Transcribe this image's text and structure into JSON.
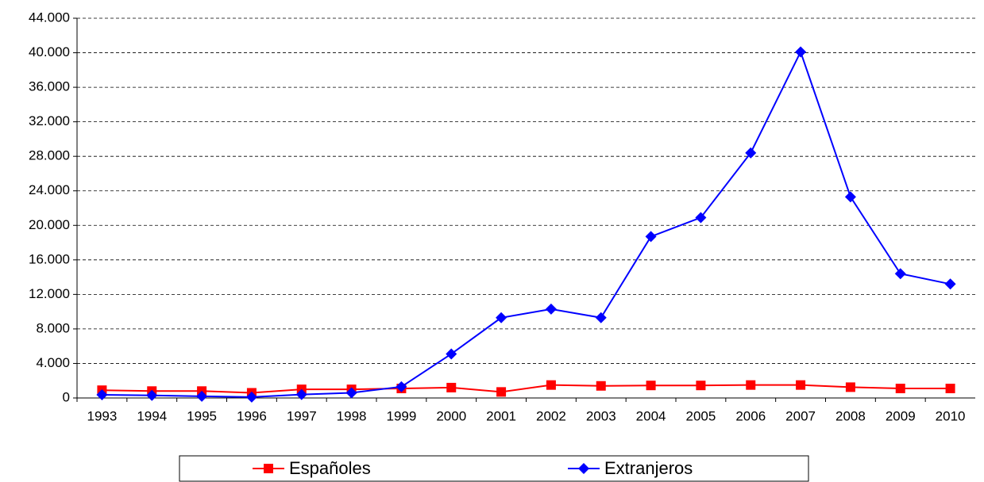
{
  "chart_data": {
    "type": "line",
    "categories": [
      "1993",
      "1994",
      "1995",
      "1996",
      "1997",
      "1998",
      "1999",
      "2000",
      "2001",
      "2002",
      "2003",
      "2004",
      "2005",
      "2006",
      "2007",
      "2008",
      "2009",
      "2010"
    ],
    "series": [
      {
        "name": "Españoles",
        "color": "#ff0000",
        "marker": "square",
        "values": [
          900,
          800,
          800,
          600,
          1000,
          1000,
          1100,
          1200,
          700,
          1500,
          1400,
          1450,
          1450,
          1500,
          1500,
          1250,
          1100,
          1100
        ]
      },
      {
        "name": "Extranjeros",
        "color": "#0000ff",
        "marker": "diamond",
        "values": [
          370,
          300,
          200,
          100,
          400,
          600,
          1300,
          5100,
          9300,
          10300,
          9300,
          18700,
          20900,
          28400,
          40100,
          23300,
          14400,
          13200
        ]
      }
    ],
    "ylim": [
      0,
      44000
    ],
    "yticks": [
      0,
      {
        "value": 4000,
        "label": "4.000"
      },
      {
        "value": 8000,
        "label": "8.000"
      },
      {
        "value": 12000,
        "label": "12.000"
      },
      {
        "value": 16000,
        "label": "16.000"
      },
      {
        "value": 20000,
        "label": "20.000"
      },
      {
        "value": 24000,
        "label": "24.000"
      },
      {
        "value": 28000,
        "label": "28.000"
      },
      {
        "value": 32000,
        "label": "32.000"
      },
      {
        "value": 36000,
        "label": "36.000"
      },
      {
        "value": 40000,
        "label": "40.000"
      },
      {
        "value": 44000,
        "label": "44.000"
      }
    ],
    "grid": true,
    "legend": "bottom"
  }
}
